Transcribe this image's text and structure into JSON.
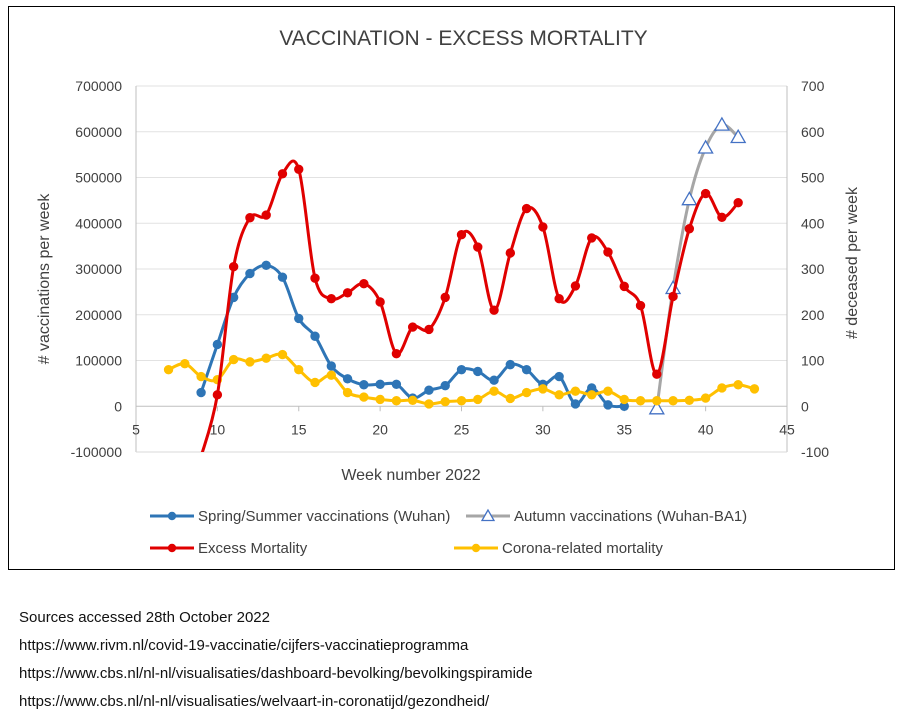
{
  "chart_data": {
    "type": "line",
    "title": "VACCINATION - EXCESS MORTALITY",
    "xlabel": "Week number 2022",
    "ylabel_left": "# vaccinations per week",
    "ylabel_right": "# deceased per week",
    "x_range": [
      5,
      45
    ],
    "x_ticks": [
      "5",
      "10",
      "15",
      "20",
      "25",
      "30",
      "35",
      "40",
      "45"
    ],
    "y_left_range": [
      -100000,
      700000
    ],
    "y_left_ticks": [
      "-100000",
      "0",
      "100000",
      "200000",
      "300000",
      "400000",
      "500000",
      "600000",
      "700000"
    ],
    "y_right_range": [
      -100,
      700
    ],
    "y_right_ticks": [
      "-100",
      "0",
      "100",
      "200",
      "300",
      "400",
      "500",
      "600",
      "700"
    ],
    "series": [
      {
        "name": "Spring/Summer vaccinations (Wuhan)",
        "axis": "left",
        "color": "#2e75b6",
        "marker": "circle",
        "x": [
          9,
          10,
          11,
          12,
          13,
          14,
          15,
          16,
          17,
          18,
          19,
          20,
          21,
          22,
          23,
          24,
          25,
          26,
          27,
          28,
          29,
          30,
          31,
          32,
          33,
          34,
          35
        ],
        "y": [
          30000,
          135000,
          238000,
          290000,
          308000,
          282000,
          192000,
          153000,
          88000,
          60000,
          47000,
          48000,
          48000,
          18000,
          35000,
          45000,
          80000,
          76000,
          57000,
          91000,
          80000,
          48000,
          65000,
          5000,
          40000,
          3000,
          0
        ]
      },
      {
        "name": "Autumn vaccinations (Wuhan-BA1)",
        "axis": "left",
        "color": "#a6a6a6",
        "marker": "triangle",
        "x": [
          37,
          38,
          39,
          40,
          41,
          42
        ],
        "y": [
          -5000,
          258000,
          452000,
          565000,
          615000,
          588000
        ]
      },
      {
        "name": "Excess Mortality",
        "axis": "right",
        "color": "#e00000",
        "marker": "circle",
        "x": [
          9,
          10,
          11,
          12,
          13,
          14,
          15,
          16,
          17,
          18,
          19,
          20,
          21,
          22,
          23,
          24,
          25,
          26,
          27,
          28,
          29,
          30,
          31,
          32,
          33,
          34,
          35,
          36,
          37,
          38,
          39,
          40,
          41,
          42
        ],
        "y": [
          -110,
          25,
          305,
          412,
          418,
          508,
          518,
          280,
          235,
          248,
          268,
          228,
          115,
          173,
          168,
          238,
          375,
          348,
          210,
          335,
          432,
          392,
          235,
          263,
          368,
          337,
          262,
          220,
          70,
          240,
          388,
          465,
          413,
          445
        ]
      },
      {
        "name": "Corona-related mortality",
        "axis": "right",
        "color": "#ffc000",
        "marker": "circle",
        "x": [
          7,
          8,
          9,
          10,
          11,
          12,
          13,
          14,
          15,
          16,
          17,
          18,
          19,
          20,
          21,
          22,
          23,
          24,
          25,
          26,
          27,
          28,
          29,
          30,
          31,
          32,
          33,
          34,
          35,
          36,
          37,
          38,
          39,
          40,
          41,
          42,
          43
        ],
        "y": [
          80,
          93,
          65,
          58,
          102,
          97,
          105,
          113,
          80,
          52,
          68,
          30,
          20,
          15,
          12,
          13,
          5,
          10,
          12,
          15,
          33,
          17,
          30,
          38,
          25,
          33,
          25,
          33,
          15,
          12,
          12,
          12,
          13,
          18,
          40,
          47,
          38
        ]
      }
    ]
  },
  "sources": {
    "heading": "Sources accessed 28th  October 2022",
    "links": [
      "https://www.rivm.nl/covid-19-vaccinatie/cijfers-vaccinatieprogramma",
      "https://www.cbs.nl/nl-nl/visualisaties/dashboard-bevolking/bevolkingspiramide",
      "https://www.cbs.nl/nl-nl/visualisaties/welvaart-in-coronatijd/gezondheid/"
    ]
  }
}
